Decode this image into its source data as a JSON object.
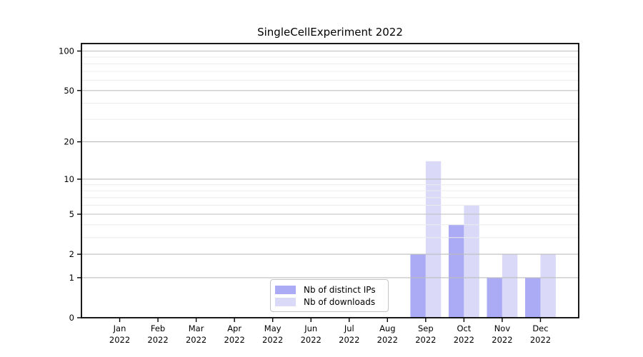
{
  "chart_data": {
    "type": "bar",
    "title": "SingleCellExperiment 2022",
    "categories": [
      "Jan",
      "Feb",
      "Mar",
      "Apr",
      "May",
      "Jun",
      "Jul",
      "Aug",
      "Sep",
      "Oct",
      "Nov",
      "Dec"
    ],
    "year": "2022",
    "series": [
      {
        "name": "Nb of distinct IPs",
        "color": "#aaaaf5",
        "values": [
          0,
          0,
          0,
          0,
          0,
          0,
          0,
          0,
          2,
          4,
          1,
          1
        ]
      },
      {
        "name": "Nb of downloads",
        "color": "#dadaf8",
        "values": [
          0,
          0,
          0,
          0,
          0,
          0,
          0,
          0,
          14,
          6,
          2,
          2
        ]
      }
    ],
    "y_axis": {
      "scale": "log1p",
      "major_ticks": [
        0,
        1,
        2,
        5,
        10,
        20,
        50,
        100
      ],
      "minor_ticks": [
        3,
        4,
        6,
        7,
        8,
        9,
        30,
        40,
        60,
        70,
        80,
        90
      ],
      "max": 114
    },
    "x_axis": {
      "tick_line1": [
        "Jan",
        "Feb",
        "Mar",
        "Apr",
        "May",
        "Jun",
        "Jul",
        "Aug",
        "Sep",
        "Oct",
        "Nov",
        "Dec"
      ],
      "tick_line2": "2022"
    },
    "grid": {
      "on": true,
      "major_color": "#bdbdbd",
      "minor_color": "#ececec",
      "drawn_over_bars": true
    },
    "legend": {
      "position": "bottom-center"
    },
    "spine_color": "#000000",
    "text_color": "#000000"
  }
}
